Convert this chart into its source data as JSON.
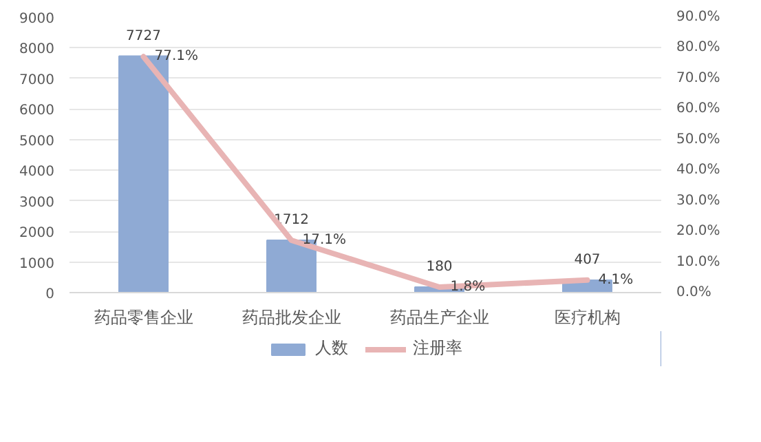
{
  "chart_data": {
    "type": "bar",
    "categories": [
      "药品零售企业",
      "药品批发企业",
      "药品生产企业",
      "医疗机构"
    ],
    "series": [
      {
        "name": "人数",
        "color": "#8faad4",
        "values": [
          7727,
          1712,
          180,
          407
        ],
        "value_labels": [
          "7727",
          "1712",
          "180",
          "407"
        ]
      },
      {
        "name": "注册率",
        "type": "line",
        "axis": "y2",
        "color": "#e8b4b4",
        "values": [
          77.1,
          17.1,
          1.8,
          4.1
        ],
        "value_labels": [
          "77.1%",
          "17.1%",
          "1.8%",
          "4.1%"
        ]
      }
    ],
    "ylim": [
      0,
      9000
    ],
    "yticks": [
      0,
      1000,
      2000,
      3000,
      4000,
      5000,
      6000,
      7000,
      8000,
      9000
    ],
    "y2lim": [
      0,
      90
    ],
    "y2ticks": [
      {
        "value": 0,
        "label": "0.0%"
      },
      {
        "value": 10,
        "label": "10.0%"
      },
      {
        "value": 20,
        "label": "20.0%"
      },
      {
        "value": 30,
        "label": "30.0%"
      },
      {
        "value": 40,
        "label": "40.0%"
      },
      {
        "value": 50,
        "label": "50.0%"
      },
      {
        "value": 60,
        "label": "60.0%"
      },
      {
        "value": 70,
        "label": "70.0%"
      },
      {
        "value": 80,
        "label": "80.0%"
      },
      {
        "value": 90,
        "label": "90.0%"
      }
    ],
    "grid": "y",
    "legend": "bottom",
    "line_style": "solid"
  }
}
